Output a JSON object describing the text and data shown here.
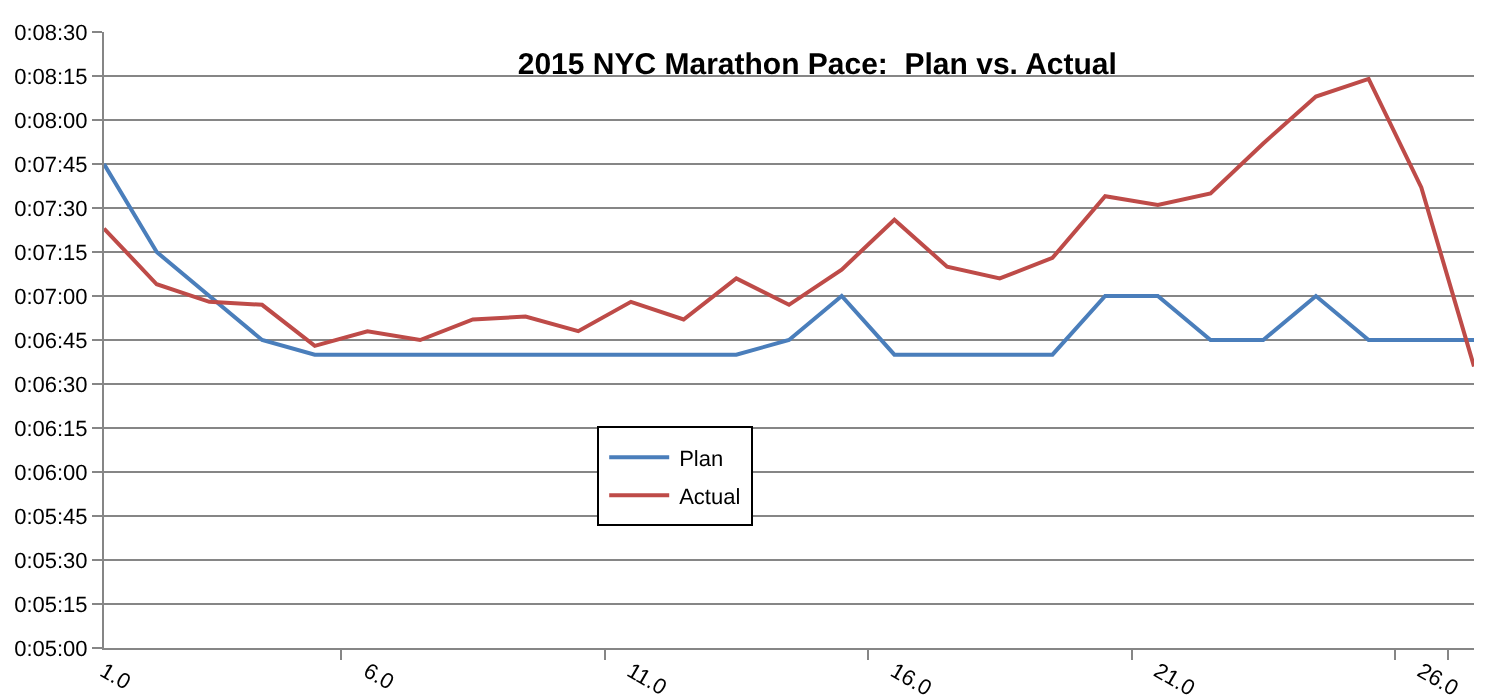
{
  "chart_data": {
    "type": "line",
    "title": "2015 NYC Marathon Pace:  Plan vs. Actual",
    "categories": [
      "1.0",
      null,
      null,
      null,
      null,
      "6.0",
      null,
      null,
      null,
      null,
      "11.0",
      null,
      null,
      null,
      null,
      "16.0",
      null,
      null,
      null,
      null,
      "21.0",
      null,
      null,
      null,
      null,
      "26.0",
      null
    ],
    "series": [
      {
        "name": "Plan",
        "color": "#4a7ebb",
        "values": [
          465,
          435,
          420,
          405,
          400,
          400,
          400,
          400,
          400,
          400,
          400,
          400,
          400,
          405,
          420,
          400,
          400,
          400,
          400,
          420,
          420,
          405,
          405,
          420,
          405,
          405,
          405
        ]
      },
      {
        "name": "Actual",
        "color": "#be4b48",
        "values": [
          443,
          424,
          418,
          417,
          403,
          408,
          405,
          412,
          413,
          408,
          418,
          412,
          426,
          417,
          429,
          446,
          430,
          426,
          433,
          454,
          451,
          455,
          472,
          488,
          494,
          457,
          396
        ]
      }
    ],
    "ylim": [
      300,
      510
    ],
    "yticks": [
      {
        "value": 300,
        "label": "0:05:00"
      },
      {
        "value": 315,
        "label": "0:05:15"
      },
      {
        "value": 330,
        "label": "0:05:30"
      },
      {
        "value": 345,
        "label": "0:05:45"
      },
      {
        "value": 360,
        "label": "0:06:00"
      },
      {
        "value": 375,
        "label": "0:06:15"
      },
      {
        "value": 390,
        "label": "0:06:30"
      },
      {
        "value": 405,
        "label": "0:06:45"
      },
      {
        "value": 420,
        "label": "0:07:00"
      },
      {
        "value": 435,
        "label": "0:07:15"
      },
      {
        "value": 450,
        "label": "0:07:30"
      },
      {
        "value": 465,
        "label": "0:07:45"
      },
      {
        "value": 480,
        "label": "0:08:00"
      },
      {
        "value": 495,
        "label": "0:08:15"
      },
      {
        "value": 510,
        "label": "0:08:30"
      }
    ],
    "grid": "y",
    "legend": "bottom",
    "marker": "none",
    "line_style": "solid"
  }
}
